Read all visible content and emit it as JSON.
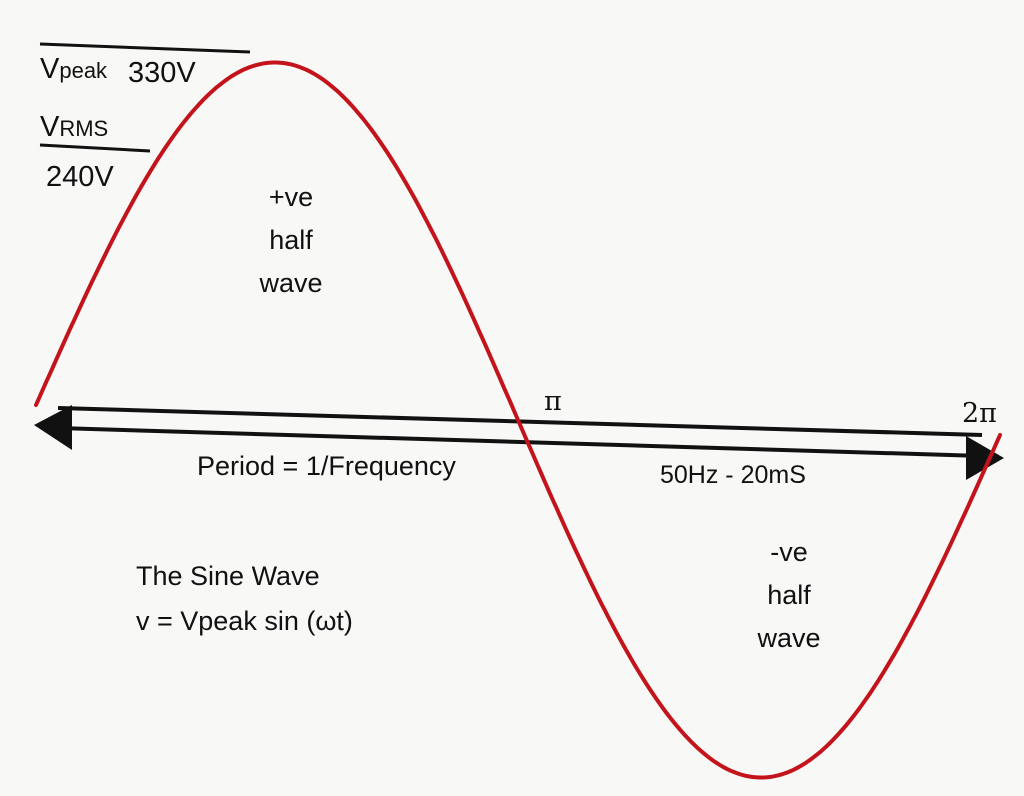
{
  "diagram": {
    "vpeak": {
      "v": "V",
      "sub": "peak",
      "value": "330V"
    },
    "vrms": {
      "v": "V",
      "sub": "RMS",
      "value": "240V"
    },
    "positive_half": [
      "+ve",
      "half",
      "wave"
    ],
    "negative_half": [
      "-ve",
      "half",
      "wave"
    ],
    "pi_label": "π",
    "two_pi_label": "2π",
    "period_text": "Period = 1/Frequency",
    "frequency_text": "50Hz - 20mS",
    "title": "The Sine Wave",
    "formula": "v = Vpeak sin (ωt)",
    "colors": {
      "wave": "#c4141b",
      "ink": "#111111",
      "background": "#f8f8f7"
    }
  }
}
